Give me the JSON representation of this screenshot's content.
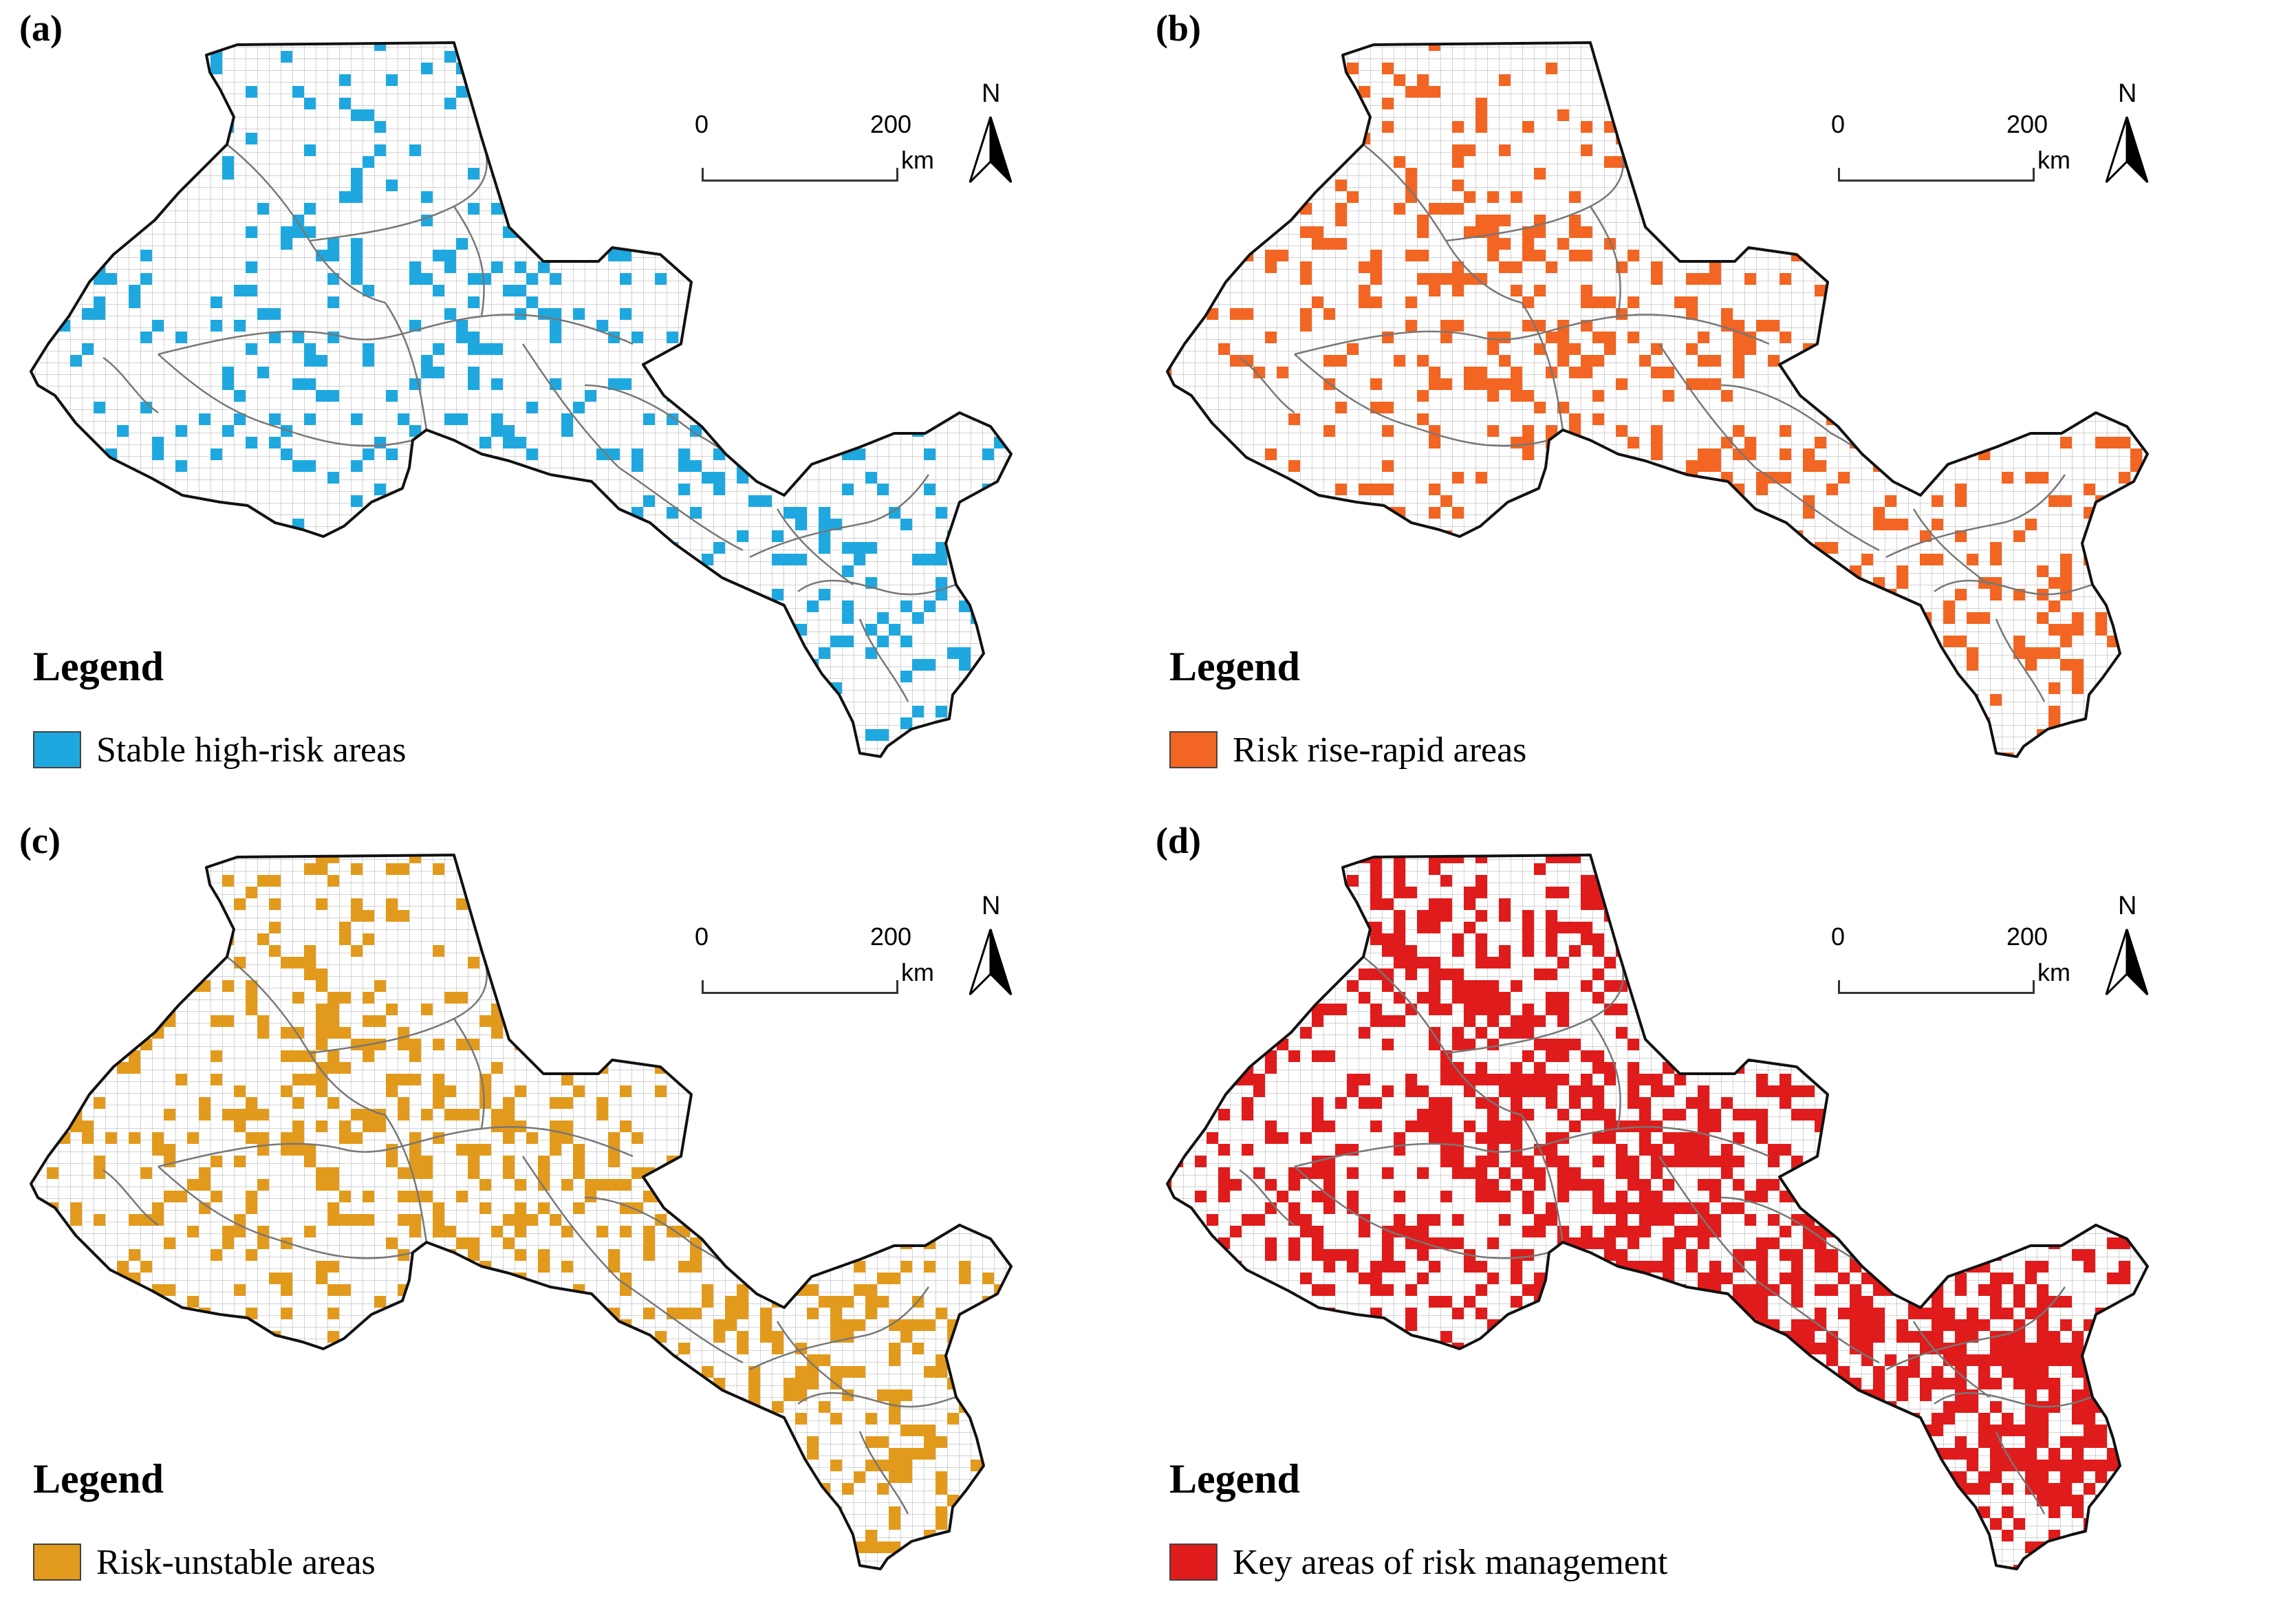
{
  "scale_bar": {
    "start": "0",
    "end": "200",
    "unit": "km"
  },
  "north_arrow": {
    "label": "N",
    "icon": "north-arrow-icon"
  },
  "legend_title": "Legend",
  "panels": [
    {
      "label": "(a)",
      "legend_text": "Stable high-risk areas",
      "color": "#1ea8df",
      "seed": 11,
      "density": 0.11
    },
    {
      "label": "(b)",
      "legend_text": "Risk rise-rapid areas",
      "color": "#f26522",
      "seed": 23,
      "density": 0.13
    },
    {
      "label": "(c)",
      "legend_text": "Risk-unstable areas",
      "color": "#e29a1c",
      "seed": 37,
      "density": 0.2
    },
    {
      "label": "(d)",
      "legend_text": "Key areas of risk management",
      "color": "#e01b1b",
      "seed": 53,
      "density": 0.32
    }
  ]
}
